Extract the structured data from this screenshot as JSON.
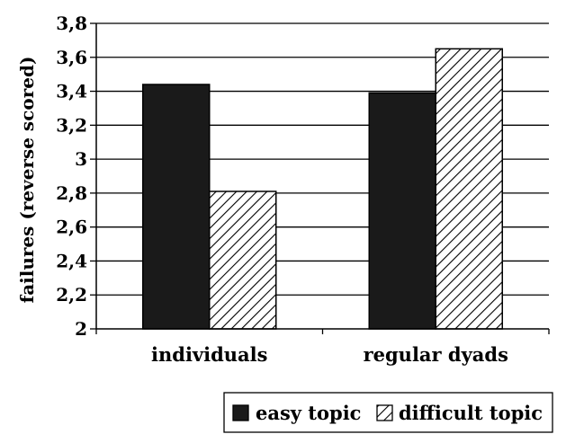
{
  "chart_data": {
    "type": "bar",
    "title": "",
    "xlabel": "",
    "ylabel": "failures (reverse scored)",
    "ylim": [
      2,
      3.8
    ],
    "yticks": [
      "2",
      "2,2",
      "2,4",
      "2,6",
      "2,8",
      "3",
      "3,2",
      "3,4",
      "3,6",
      "3,8"
    ],
    "grid": true,
    "legend_position": "bottom-right",
    "categories": [
      "individuals",
      "regular dyads"
    ],
    "series": [
      {
        "name": "easy topic",
        "values": [
          3.44,
          3.39
        ],
        "fill": "solid",
        "color": "#1a1a1a"
      },
      {
        "name": "difficult topic",
        "values": [
          2.81,
          3.65
        ],
        "fill": "hatched",
        "color": "#000000"
      }
    ]
  }
}
